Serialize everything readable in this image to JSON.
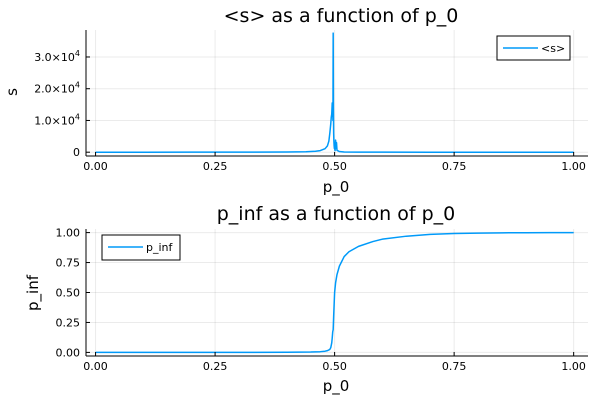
{
  "chart_data": [
    {
      "type": "line",
      "title": "<s> as a function of p_0",
      "xlabel": "p_0",
      "ylabel": "s",
      "xlim": [
        -0.02,
        1.03
      ],
      "ylim": [
        -1200,
        38500
      ],
      "xticks": [
        0.0,
        0.25,
        0.5,
        0.75,
        1.0
      ],
      "xtick_labels": [
        "0.00",
        "0.25",
        "0.50",
        "0.75",
        "1.00"
      ],
      "yticks": [
        0,
        10000,
        20000,
        30000
      ],
      "ytick_labels": [
        {
          "mantissa": "0",
          "exp": ""
        },
        {
          "mantissa": "1.0×10",
          "exp": "4"
        },
        {
          "mantissa": "2.0×10",
          "exp": "4"
        },
        {
          "mantissa": "3.0×10",
          "exp": "4"
        }
      ],
      "grid": true,
      "legend_position": "top-right",
      "series": [
        {
          "name": "<s>",
          "color": "#009af9",
          "x": [
            0.0,
            0.1,
            0.2,
            0.3,
            0.4,
            0.44,
            0.46,
            0.47,
            0.48,
            0.485,
            0.488,
            0.49,
            0.492,
            0.493,
            0.494,
            0.495,
            0.496,
            0.4965,
            0.497,
            0.4975,
            0.498,
            0.4985,
            0.499,
            0.4995,
            0.5,
            0.5005,
            0.501,
            0.502,
            0.503,
            0.504,
            0.505,
            0.51,
            0.52,
            0.55,
            0.6,
            0.7,
            0.8,
            0.9,
            1.0
          ],
          "y": [
            0,
            0,
            10,
            20,
            60,
            150,
            300,
            500,
            1100,
            2000,
            3500,
            6000,
            9000,
            11000,
            12000,
            15500,
            13000,
            10000,
            37500,
            14500,
            6000,
            3500,
            2000,
            1200,
            1800,
            900,
            500,
            3800,
            1200,
            3000,
            600,
            200,
            80,
            20,
            10,
            0,
            0,
            0,
            0
          ]
        }
      ]
    },
    {
      "type": "line",
      "title": "p_inf as a function of p_0",
      "xlabel": "p_0",
      "ylabel": "p_inf",
      "xlim": [
        -0.02,
        1.03
      ],
      "ylim": [
        -0.03,
        1.03
      ],
      "xticks": [
        0.0,
        0.25,
        0.5,
        0.75,
        1.0
      ],
      "xtick_labels": [
        "0.00",
        "0.25",
        "0.50",
        "0.75",
        "1.00"
      ],
      "yticks": [
        0.0,
        0.25,
        0.5,
        0.75,
        1.0
      ],
      "ytick_labels": [
        "0.00",
        "0.25",
        "0.50",
        "0.75",
        "1.00"
      ],
      "grid": true,
      "legend_position": "top-left",
      "series": [
        {
          "name": "p_inf",
          "color": "#009af9",
          "x": [
            0.0,
            0.1,
            0.2,
            0.3,
            0.4,
            0.45,
            0.47,
            0.48,
            0.485,
            0.49,
            0.492,
            0.494,
            0.495,
            0.496,
            0.497,
            0.498,
            0.499,
            0.5,
            0.502,
            0.505,
            0.51,
            0.52,
            0.53,
            0.55,
            0.58,
            0.6,
            0.65,
            0.7,
            0.75,
            0.8,
            0.85,
            0.9,
            0.95,
            1.0
          ],
          "y": [
            0,
            0,
            0,
            0,
            0.001,
            0.003,
            0.006,
            0.01,
            0.015,
            0.025,
            0.04,
            0.08,
            0.12,
            0.17,
            0.19,
            0.3,
            0.4,
            0.5,
            0.58,
            0.65,
            0.72,
            0.8,
            0.84,
            0.885,
            0.925,
            0.945,
            0.97,
            0.985,
            0.992,
            0.996,
            0.998,
            0.999,
            1.0,
            1.0
          ]
        }
      ]
    }
  ]
}
